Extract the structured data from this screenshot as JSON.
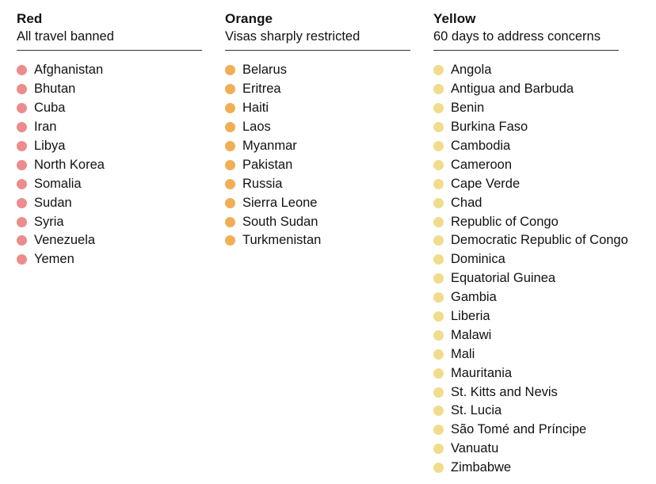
{
  "chart_data": {
    "type": "table",
    "layout": "three-column categorical list with colored bullet dots",
    "groups": [
      {
        "label": "Red",
        "description": "All travel banned",
        "color": "#ec8c8c",
        "countries": [
          "Afghanistan",
          "Bhutan",
          "Cuba",
          "Iran",
          "Libya",
          "North Korea",
          "Somalia",
          "Sudan",
          "Syria",
          "Venezuela",
          "Yemen"
        ]
      },
      {
        "label": "Orange",
        "description": "Visas sharply restricted",
        "color": "#f2ae55",
        "countries": [
          "Belarus",
          "Eritrea",
          "Haiti",
          "Laos",
          "Myanmar",
          "Pakistan",
          "Russia",
          "Sierra Leone",
          "South Sudan",
          "Turkmenistan"
        ]
      },
      {
        "label": "Yellow",
        "description": "60 days to address concerns",
        "color": "#f0dc8c",
        "countries": [
          "Angola",
          "Antigua and Barbuda",
          "Benin",
          "Burkina Faso",
          "Cambodia",
          "Cameroon",
          "Cape Verde",
          "Chad",
          "Republic of Congo",
          "Democratic Republic of Congo",
          "Dominica",
          "Equatorial Guinea",
          "Gambia",
          "Liberia",
          "Malawi",
          "Mali",
          "Mauritania",
          "St. Kitts and Nevis",
          "St. Lucia",
          "São Tomé and Príncipe",
          "Vanuatu",
          "Zimbabwe"
        ]
      }
    ],
    "rule_color": "#333333",
    "text_color": "#121212",
    "background_color": "#ffffff"
  }
}
